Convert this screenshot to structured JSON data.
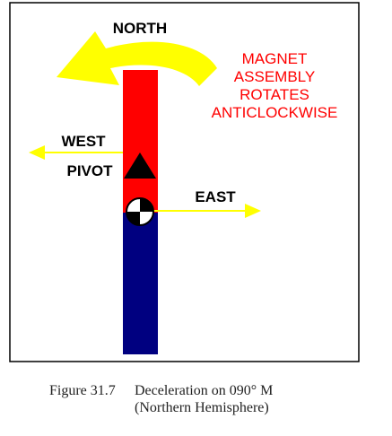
{
  "diagram": {
    "north_label": "NORTH",
    "west_label": "WEST",
    "east_label": "EAST",
    "pivot_label": "PIVOT",
    "rotation_note": [
      "MAGNET",
      "ASSEMBLY",
      "ROTATES",
      "ANTICLOCKWISE"
    ],
    "colors": {
      "red_pole": "#ff0000",
      "blue_pole": "#000080",
      "arrow": "#ffff00",
      "note_text": "#ff0000",
      "frame": "#000000"
    }
  },
  "caption": {
    "number": "Figure 31.7",
    "title_line1": "Deceleration on 090° M",
    "title_line2": "(Northern Hemisphere)"
  }
}
